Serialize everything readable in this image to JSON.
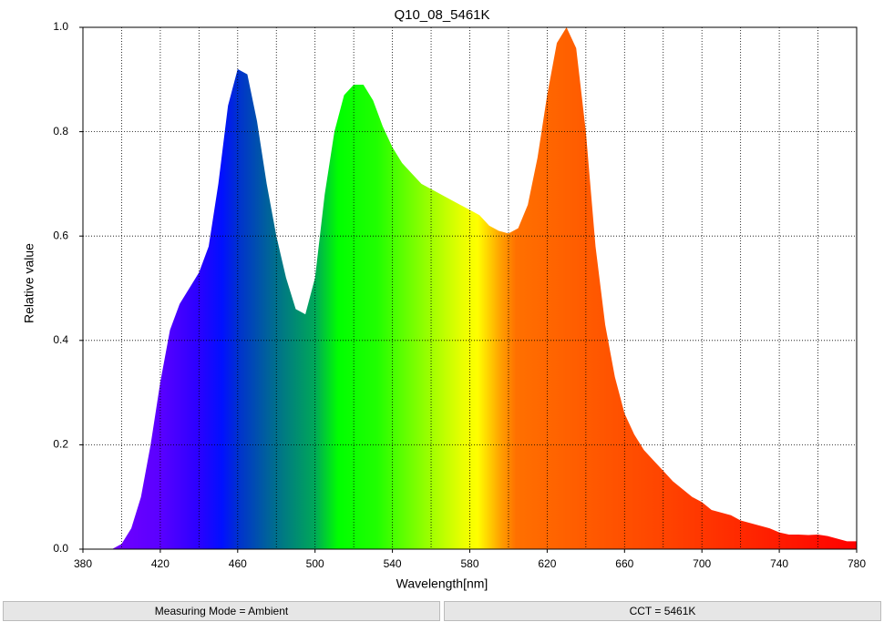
{
  "chart_data": {
    "type": "area",
    "title": "Q10_08_5461K",
    "x_label": "Wavelength[nm]",
    "y_label": "Relative value",
    "x": [
      395,
      400,
      405,
      410,
      415,
      420,
      425,
      430,
      435,
      440,
      445,
      450,
      455,
      460,
      465,
      470,
      475,
      480,
      485,
      490,
      495,
      500,
      505,
      510,
      515,
      520,
      525,
      530,
      535,
      540,
      545,
      550,
      555,
      560,
      565,
      570,
      575,
      580,
      585,
      590,
      595,
      600,
      605,
      610,
      615,
      620,
      625,
      630,
      635,
      640,
      645,
      650,
      655,
      660,
      665,
      670,
      675,
      680,
      685,
      690,
      695,
      700,
      705,
      710,
      715,
      720,
      725,
      730,
      735,
      740,
      745,
      750,
      755,
      760,
      765,
      770,
      775,
      780
    ],
    "values": [
      0,
      0.01,
      0.04,
      0.1,
      0.2,
      0.32,
      0.42,
      0.47,
      0.5,
      0.53,
      0.58,
      0.7,
      0.85,
      0.92,
      0.91,
      0.82,
      0.7,
      0.6,
      0.52,
      0.46,
      0.45,
      0.52,
      0.68,
      0.8,
      0.87,
      0.89,
      0.89,
      0.86,
      0.81,
      0.77,
      0.74,
      0.72,
      0.7,
      0.69,
      0.68,
      0.67,
      0.66,
      0.65,
      0.64,
      0.62,
      0.61,
      0.605,
      0.615,
      0.66,
      0.75,
      0.87,
      0.97,
      1.0,
      0.96,
      0.8,
      0.58,
      0.43,
      0.33,
      0.26,
      0.22,
      0.19,
      0.17,
      0.15,
      0.13,
      0.115,
      0.1,
      0.09,
      0.075,
      0.07,
      0.065,
      0.055,
      0.05,
      0.045,
      0.04,
      0.032,
      0.028,
      0.028,
      0.027,
      0.028,
      0.025,
      0.02,
      0.015,
      0.015
    ],
    "xlim": [
      380,
      780
    ],
    "xticks": [
      380,
      420,
      460,
      500,
      540,
      580,
      620,
      660,
      700,
      740,
      780
    ],
    "xminor_ticks": [
      400,
      440,
      480,
      520,
      560,
      600,
      640,
      680,
      720,
      760
    ],
    "ylim": [
      0,
      1
    ],
    "yticks": [
      {
        "value": 0,
        "label": "0.0"
      },
      0.2,
      0.4,
      0.6,
      0.8,
      {
        "value": 1,
        "label": "1.0"
      }
    ],
    "grid": true
  },
  "status_bar": {
    "left": "Measuring Mode = Ambient",
    "right": "CCT = 5461K"
  }
}
